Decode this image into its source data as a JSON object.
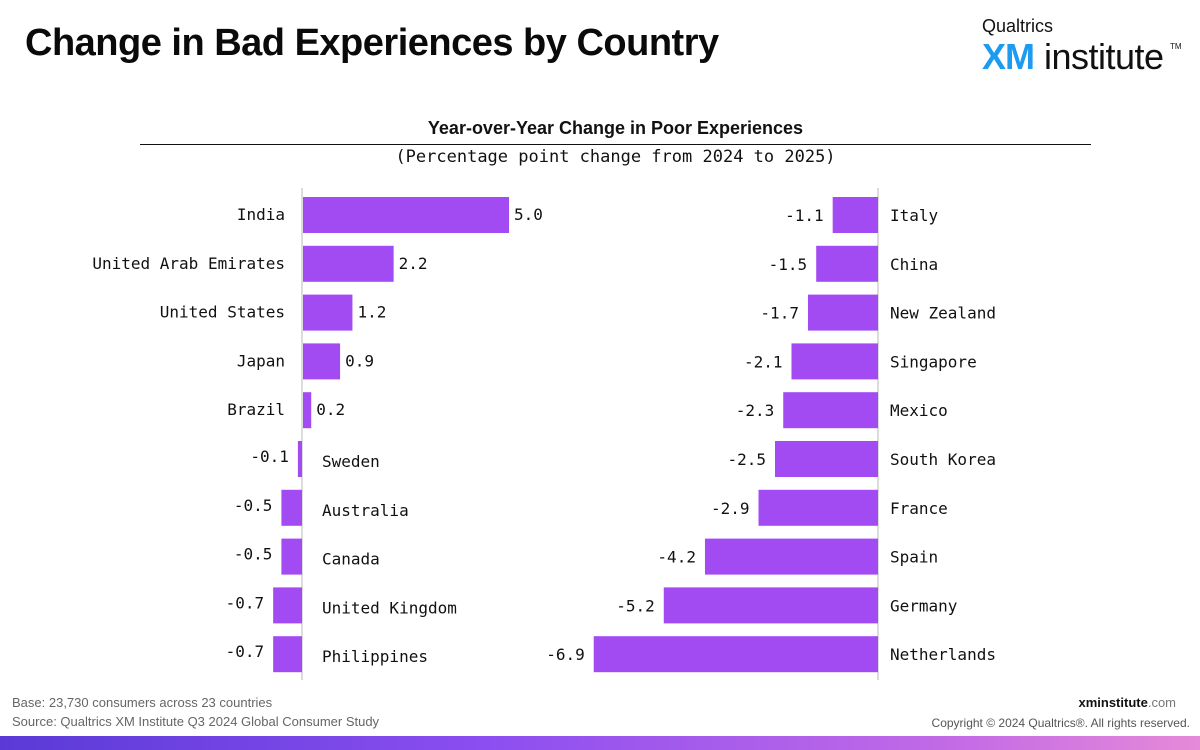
{
  "header": {
    "title": "Change in Bad Experiences by Country",
    "logo_qualtrics": "Qualtrics",
    "logo_xm": "XM",
    "logo_institute": "institute",
    "logo_tm": "TM"
  },
  "chart_data": {
    "type": "bar",
    "orientation": "horizontal",
    "title": "Year-over-Year Change in Poor Experiences",
    "subtitle": "(Percentage point change from 2024 to 2025)",
    "bar_color": "#a24bf2",
    "panels": [
      {
        "name": "left",
        "categories": [
          "India",
          "United Arab Emirates",
          "United States",
          "Japan",
          "Brazil",
          "Sweden",
          "Australia",
          "Canada",
          "United Kingdom",
          "Philippines"
        ],
        "values": [
          5.0,
          2.2,
          1.2,
          0.9,
          0.2,
          -0.1,
          -0.5,
          -0.5,
          -0.7,
          -0.7
        ],
        "labels": [
          "5.0",
          "2.2",
          "1.2",
          "0.9",
          "0.2",
          "-0.1",
          "-0.5",
          "-0.5",
          "-0.7",
          "-0.7"
        ]
      },
      {
        "name": "right",
        "categories": [
          "Italy",
          "China",
          "New Zealand",
          "Singapore",
          "Mexico",
          "South Korea",
          "France",
          "Spain",
          "Germany",
          "Netherlands"
        ],
        "values": [
          -1.1,
          -1.5,
          -1.7,
          -2.1,
          -2.3,
          -2.5,
          -2.9,
          -4.2,
          -5.2,
          -6.9
        ],
        "labels": [
          "-1.1",
          "-1.5",
          "-1.7",
          "-2.1",
          "-2.3",
          "-2.5",
          "-2.9",
          "-4.2",
          "-5.2",
          "-6.9"
        ]
      }
    ]
  },
  "footer": {
    "base": "Base: 23,730 consumers across 23 countries",
    "source": "Source: Qualtrics XM Institute Q3 2024 Global Consumer Study",
    "url_bold": "xminstitute",
    "url_rest": ".com",
    "copyright": "Copyright © 2024 Qualtrics®. All rights reserved."
  }
}
